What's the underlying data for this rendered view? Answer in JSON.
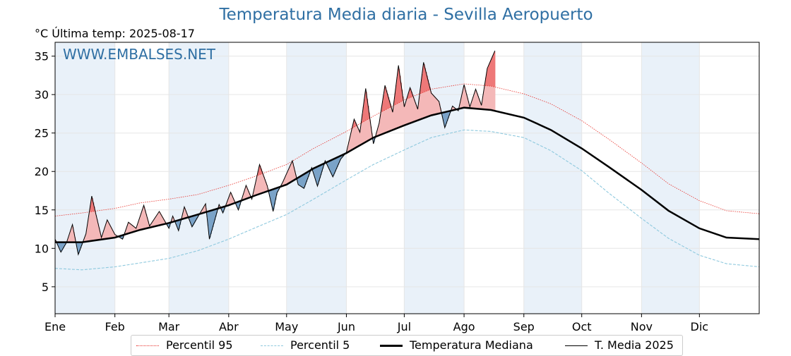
{
  "chart_data": {
    "type": "line",
    "title": "Temperatura Media diaria - Sevilla Aeropuerto",
    "subtitle": "°C   Última temp: 2025-08-17",
    "watermark": "WWW.EMBALSES.NET",
    "ylabel": "°C",
    "ylim": [
      1.5,
      36.8
    ],
    "xlim_days": [
      1,
      366
    ],
    "y_ticks": [
      5,
      10,
      15,
      20,
      25,
      30,
      35
    ],
    "x_tick_labels": [
      "Ene",
      "Feb",
      "Mar",
      "Abr",
      "May",
      "Jun",
      "Jul",
      "Ago",
      "Sep",
      "Oct",
      "Nov",
      "Dic"
    ],
    "grid": true,
    "legend_position": "bottom",
    "colors": {
      "title": "#2f6fa3",
      "p95": "#e8302a",
      "p5": "#8ec9de",
      "median": "#000000",
      "current": "#000000",
      "above_median": "#f4b8b8",
      "above_p95": "#ee7878",
      "below_median": "#7aa3c8",
      "month_shade": "#e9f1f9"
    },
    "series": [
      {
        "name": "Percentil 95",
        "x": [
          1,
          15,
          32,
          45,
          60,
          75,
          91,
          105,
          121,
          135,
          152,
          166,
          182,
          196,
          213,
          227,
          244,
          258,
          274,
          288,
          305,
          319,
          335,
          349,
          366
        ],
        "values": [
          14.2,
          14.6,
          15.2,
          15.9,
          16.4,
          17.0,
          18.2,
          19.4,
          20.9,
          23.0,
          25.2,
          27.2,
          29.3,
          30.7,
          31.4,
          31.1,
          30.1,
          28.8,
          26.6,
          24.2,
          21.1,
          18.4,
          16.2,
          14.9,
          14.5
        ]
      },
      {
        "name": "Percentil 5",
        "x": [
          1,
          15,
          32,
          45,
          60,
          75,
          91,
          105,
          121,
          135,
          152,
          166,
          182,
          196,
          213,
          227,
          244,
          258,
          274,
          288,
          305,
          319,
          335,
          349,
          366
        ],
        "values": [
          7.4,
          7.2,
          7.6,
          8.1,
          8.7,
          9.7,
          11.2,
          12.7,
          14.4,
          16.4,
          18.9,
          20.9,
          22.8,
          24.4,
          25.4,
          25.2,
          24.4,
          22.7,
          20.1,
          17.2,
          13.9,
          11.3,
          9.1,
          8.0,
          7.6
        ]
      },
      {
        "name": "Temperatura Mediana",
        "x": [
          1,
          15,
          32,
          45,
          60,
          75,
          91,
          105,
          121,
          135,
          152,
          166,
          182,
          196,
          213,
          227,
          244,
          258,
          274,
          288,
          305,
          319,
          335,
          349,
          366
        ],
        "values": [
          10.8,
          10.8,
          11.4,
          12.4,
          13.3,
          14.4,
          15.6,
          16.9,
          18.3,
          20.4,
          22.4,
          24.4,
          26.0,
          27.3,
          28.3,
          28.0,
          27.0,
          25.4,
          23.0,
          20.6,
          17.6,
          14.9,
          12.6,
          11.4,
          11.2
        ]
      },
      {
        "name": "T. Media 2025",
        "x": [
          1,
          4,
          7,
          10,
          13,
          17,
          20,
          22,
          25,
          28,
          32,
          36,
          39,
          43,
          47,
          50,
          55,
          60,
          62,
          65,
          68,
          72,
          75,
          79,
          81,
          86,
          88,
          92,
          96,
          100,
          103,
          107,
          111,
          114,
          116,
          119,
          124,
          127,
          130,
          134,
          137,
          141,
          145,
          149,
          152,
          156,
          159,
          162,
          166,
          169,
          172,
          176,
          179,
          182,
          185,
          189,
          192,
          196,
          200,
          203,
          207,
          210,
          213,
          216,
          219,
          222,
          225,
          229
        ],
        "values": [
          11.2,
          9.5,
          10.8,
          13.1,
          9.2,
          11.9,
          16.8,
          14.6,
          11.4,
          13.7,
          11.8,
          11.2,
          13.4,
          12.6,
          15.6,
          12.9,
          14.8,
          12.6,
          14.2,
          12.3,
          15.4,
          12.8,
          14.1,
          15.8,
          11.2,
          15.7,
          14.6,
          17.3,
          15.0,
          18.2,
          16.4,
          20.9,
          18.1,
          14.8,
          17.2,
          18.6,
          21.4,
          18.3,
          17.8,
          20.5,
          18.1,
          21.4,
          19.3,
          21.6,
          22.5,
          26.8,
          25.1,
          30.8,
          23.6,
          26.3,
          31.2,
          27.7,
          33.8,
          28.4,
          30.9,
          28.1,
          34.2,
          30.2,
          29.1,
          25.7,
          28.5,
          27.9,
          31.3,
          28.4,
          30.7,
          28.6,
          33.4,
          35.7
        ]
      }
    ]
  },
  "legend": {
    "p95": "Percentil 95",
    "p5": "Percentil 5",
    "median": "Temperatura Mediana",
    "current": "T. Media 2025"
  }
}
